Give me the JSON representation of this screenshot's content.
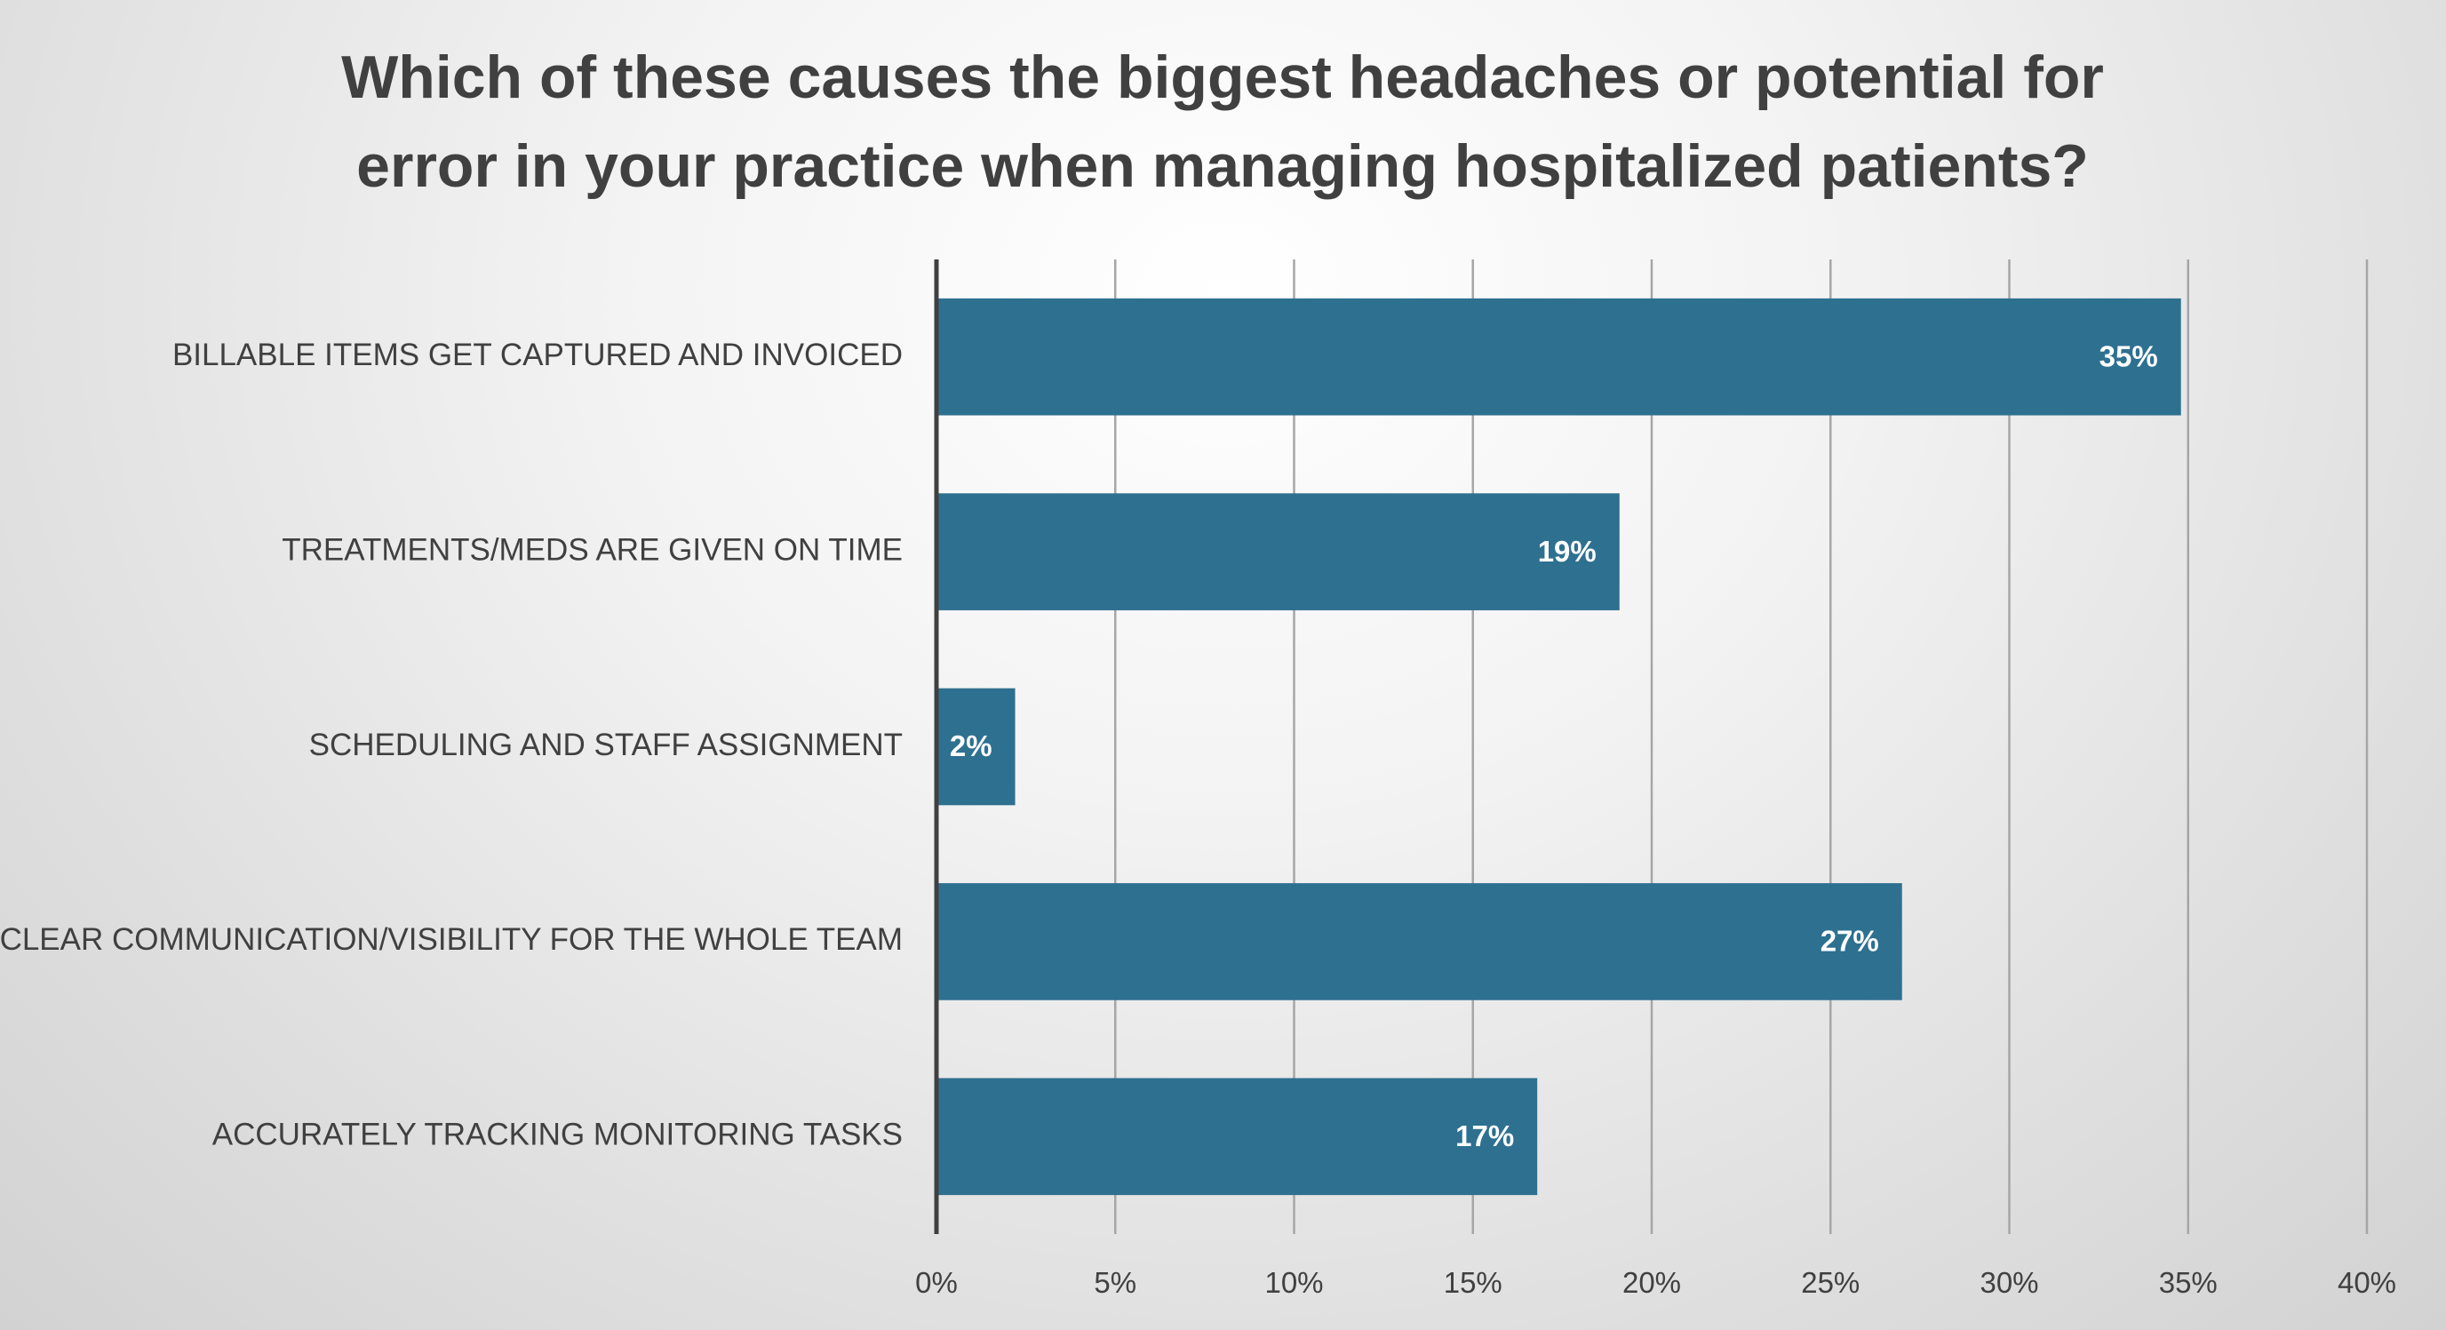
{
  "chart_data": {
    "type": "bar",
    "orientation": "horizontal",
    "title_lines": [
      "Which of these causes the biggest headaches or potential for",
      "error in your practice when managing hospitalized patients?"
    ],
    "categories": [
      "BILLABLE ITEMS GET CAPTURED AND INVOICED",
      "TREATMENTS/MEDS ARE GIVEN ON TIME",
      "SCHEDULING AND STAFF ASSIGNMENT",
      "CLEAR COMMUNICATION/VISIBILITY FOR THE WHOLE TEAM",
      "ACCURATELY TRACKING MONITORING TASKS"
    ],
    "values": [
      0.348,
      0.191,
      0.022,
      0.27,
      0.168
    ],
    "data_labels": [
      "35%",
      "19%",
      "2%",
      "27%",
      "17%"
    ],
    "x_ticks": [
      0,
      0.05,
      0.1,
      0.15,
      0.2,
      0.25,
      0.3,
      0.35,
      0.4
    ],
    "x_tick_labels": [
      "0%",
      "5%",
      "10%",
      "15%",
      "20%",
      "25%",
      "30%",
      "35%",
      "40%"
    ],
    "xlim": [
      0,
      0.4
    ],
    "xlabel": "",
    "ylabel": "",
    "grid": "vertical",
    "legend": "none",
    "colors": {
      "bar": "#2e7090",
      "gridline": "#a6a6a6",
      "axis": "#404040",
      "text": "#404040",
      "data_label": "#ffffff"
    }
  }
}
